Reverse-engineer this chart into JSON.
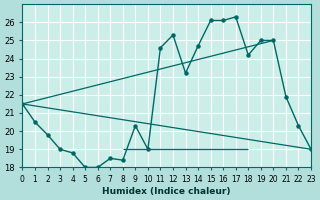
{
  "xlabel": "Humidex (Indice chaleur)",
  "ylabel": "",
  "background_color": "#b2dfdb",
  "plot_bg_color": "#cceee8",
  "grid_color": "#ffffff",
  "line_color": "#006666",
  "ylim": [
    18,
    27
  ],
  "xlim": [
    0,
    23
  ],
  "yticks": [
    18,
    19,
    20,
    21,
    22,
    23,
    24,
    25,
    26
  ],
  "xtick_labels": [
    "0",
    "1",
    "2",
    "3",
    "4",
    "5",
    "6",
    "7",
    "8",
    "9",
    "10",
    "11",
    "12",
    "13",
    "14",
    "15",
    "16",
    "17",
    "18",
    "19",
    "20",
    "21",
    "22",
    "23"
  ],
  "line1_x": [
    0,
    1,
    2,
    3,
    4,
    5,
    6,
    7,
    8,
    9,
    10,
    11,
    12,
    13,
    14,
    15,
    16,
    17,
    18,
    19,
    20,
    21,
    22,
    23
  ],
  "line1_y": [
    21.5,
    20.5,
    19.8,
    19.0,
    18.8,
    18.0,
    18.0,
    18.5,
    18.4,
    20.3,
    19.0,
    24.6,
    25.3,
    23.2,
    24.7,
    26.1,
    26.1,
    26.3,
    24.2,
    25.0,
    25.0,
    21.9,
    20.3,
    19.0
  ],
  "line2_x": [
    0,
    23
  ],
  "line2_y": [
    21.5,
    19.0
  ],
  "line3_x": [
    0,
    20
  ],
  "line3_y": [
    21.5,
    25.0
  ],
  "hline_y": 19.0,
  "hline_x_start": 8,
  "hline_x_end": 18
}
